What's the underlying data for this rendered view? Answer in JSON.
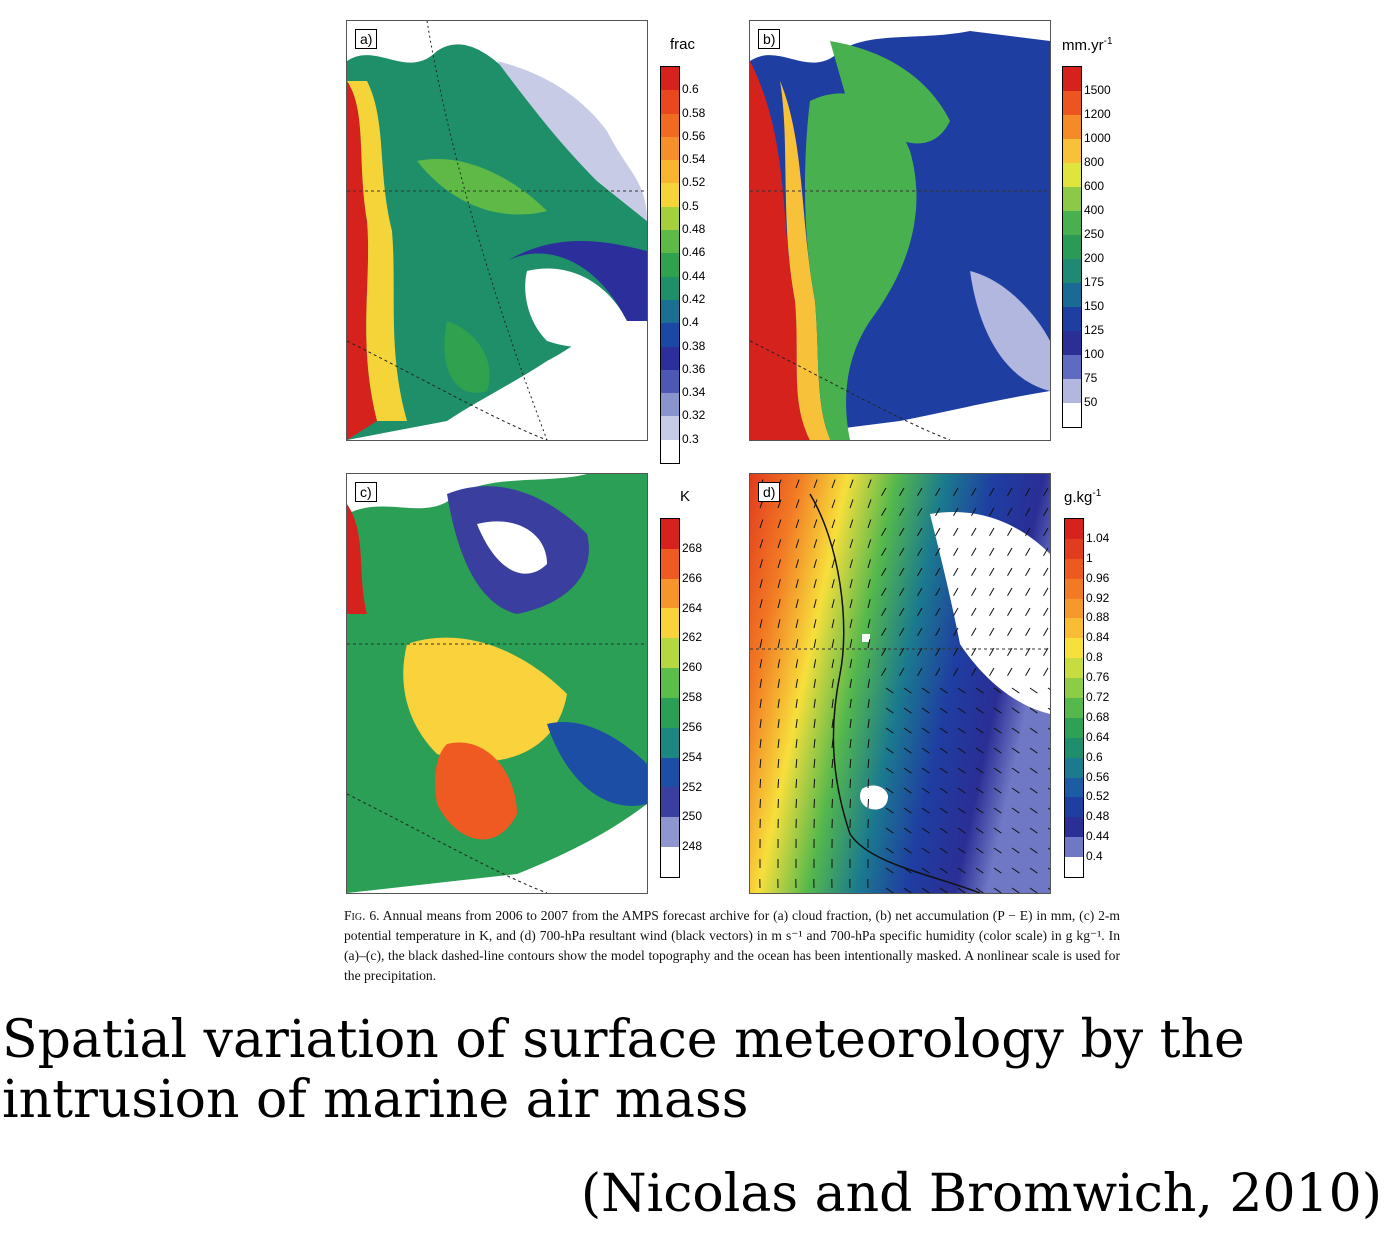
{
  "panels": [
    {
      "label": "a)",
      "unit": "frac",
      "ticks": [
        "0.6",
        "0.58",
        "0.56",
        "0.54",
        "0.52",
        "0.5",
        "0.48",
        "0.46",
        "0.44",
        "0.42",
        "0.4",
        "0.38",
        "0.36",
        "0.34",
        "0.32",
        "0.3"
      ],
      "colors": [
        "#d6221c",
        "#e8471f",
        "#f06a22",
        "#f48f29",
        "#f8b532",
        "#f5d43a",
        "#a6cf3c",
        "#5fb947",
        "#2fa14f",
        "#1f8f6a",
        "#1a6f93",
        "#1b48a6",
        "#2c2f9b",
        "#4c58b4",
        "#8b93cc",
        "#c7cbe6",
        "#ffffff"
      ]
    },
    {
      "label": "b)",
      "unit": "mm.yr",
      "unit_sup": "-1",
      "ticks": [
        "1500",
        "1200",
        "1000",
        "800",
        "600",
        "400",
        "250",
        "200",
        "175",
        "150",
        "125",
        "100",
        "75",
        "50"
      ],
      "colors": [
        "#d6221c",
        "#ec5420",
        "#f48a28",
        "#f8c13a",
        "#dfe53c",
        "#8cc948",
        "#48b04f",
        "#2a9a57",
        "#1f8a74",
        "#1a6a96",
        "#1f3ea2",
        "#2a2e95",
        "#5f6bc0",
        "#b1b7de",
        "#ffffff"
      ]
    },
    {
      "label": "c)",
      "unit": "K",
      "ticks": [
        "268",
        "266",
        "264",
        "262",
        "260",
        "258",
        "256",
        "254",
        "252",
        "250",
        "248"
      ],
      "colors": [
        "#d6221c",
        "#ee5a22",
        "#f5952c",
        "#f9d23c",
        "#b5d842",
        "#5bbd4a",
        "#2a9f55",
        "#1d8680",
        "#1c4ea6",
        "#3a3f9f",
        "#8e95cf",
        "#ffffff"
      ]
    },
    {
      "label": "d)",
      "unit": "g.kg",
      "unit_sup": "-1",
      "ticks": [
        "1.04",
        "1",
        "0.96",
        "0.92",
        "0.88",
        "0.84",
        "0.8",
        "0.76",
        "0.72",
        "0.68",
        "0.64",
        "0.6",
        "0.56",
        "0.52",
        "0.48",
        "0.44",
        "0.4"
      ],
      "colors": [
        "#d6221c",
        "#e23c1e",
        "#ed5a20",
        "#f27a24",
        "#f59a2a",
        "#f8bd34",
        "#f7df3c",
        "#c6dc40",
        "#8dcc46",
        "#55b84c",
        "#2ea155",
        "#1f8e6c",
        "#1b7a8e",
        "#1c5ca5",
        "#1f3ea2",
        "#2a2e95",
        "#6f78c4",
        "#ffffff"
      ]
    }
  ],
  "caption": {
    "fig_label": "Fig. 6.",
    "text": " Annual means from 2006 to 2007 from the AMPS forecast archive for (a) cloud fraction, (b) net accumulation (P − E) in mm, (c) 2-m potential temperature in K, and (d) 700-hPa resultant wind (black vectors) in m s⁻¹ and 700-hPa specific humidity (color scale) in g kg⁻¹. In (a)–(c), the black dashed-line contours show the model topography and the ocean has been intentionally masked. A nonlinear scale is used for the precipitation."
  },
  "title": "Spatial variation of surface meteorology by the intrusion of marine air mass",
  "citation": "(Nicolas and Bromwich, 2010)"
}
